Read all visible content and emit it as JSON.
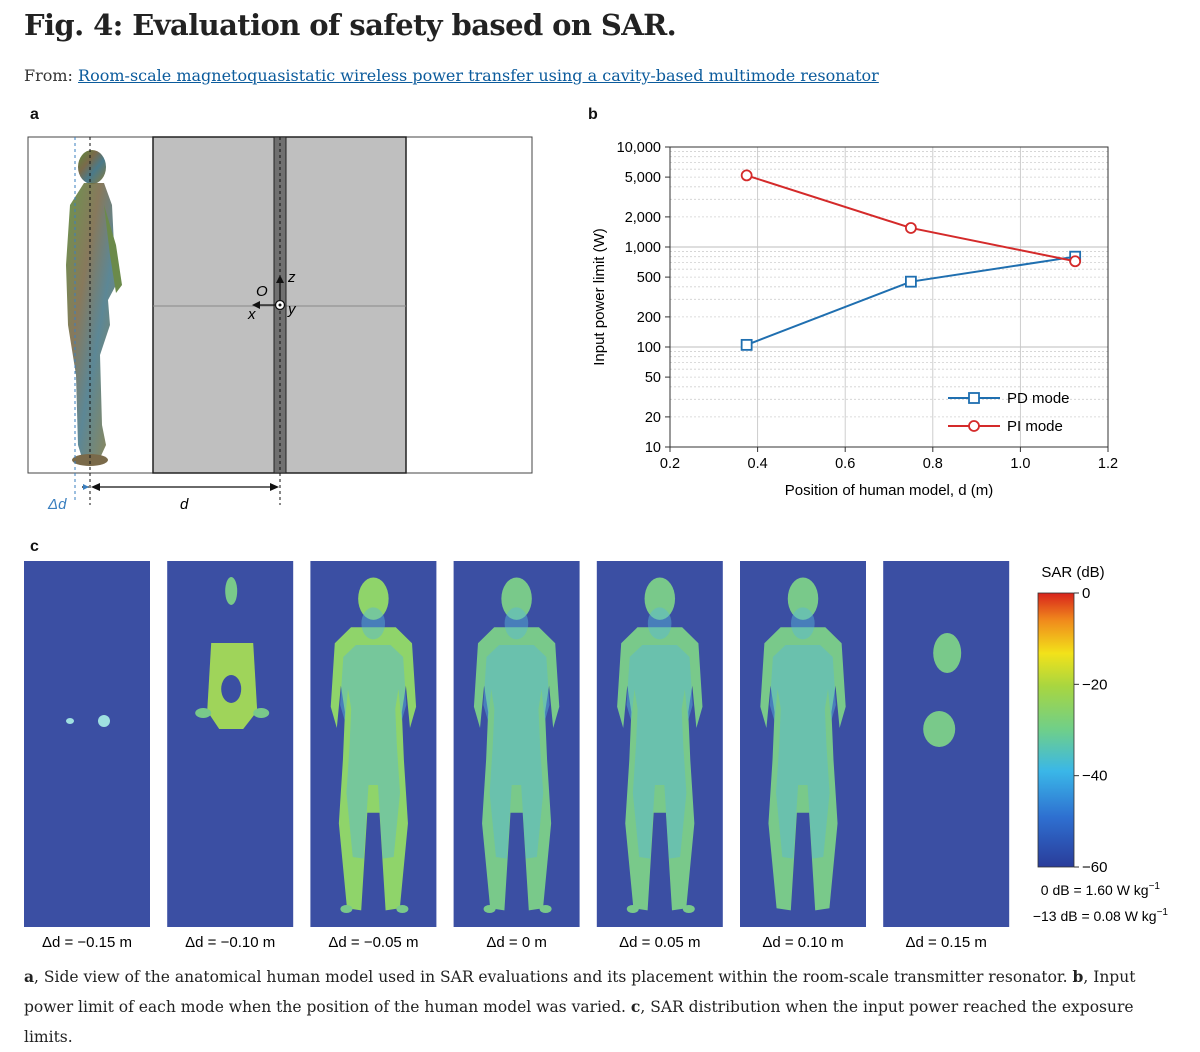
{
  "figure": {
    "title": "Fig. 4: Evaluation of safety based on SAR.",
    "from_label": "From:",
    "from_link": "Room-scale magnetoquasistatic wireless power transfer using a cavity-based multimode resonator"
  },
  "panel_a": {
    "label": "a",
    "axis_labels": {
      "origin": "O",
      "x": "x",
      "y": "y",
      "z": "z"
    },
    "dimensions": {
      "delta_d": "Δd",
      "d": "d"
    }
  },
  "panel_b": {
    "label": "b"
  },
  "panel_c": {
    "label": "c",
    "colorbar": {
      "title": "SAR (dB)",
      "ticks": [
        "0",
        "−20",
        "−40",
        "−60"
      ],
      "note1": "0 dB = 1.60 W kg",
      "note2": "−13 dB = 0.08 W kg",
      "note_exp": "−1"
    },
    "frames": [
      {
        "label": "Δd = −0.15 m"
      },
      {
        "label": "Δd = −0.10 m"
      },
      {
        "label": "Δd = −0.05 m"
      },
      {
        "label": "Δd = 0 m"
      },
      {
        "label": "Δd = 0.05 m"
      },
      {
        "label": "Δd = 0.10 m"
      },
      {
        "label": "Δd = 0.15 m"
      }
    ]
  },
  "caption": {
    "a_label": "a",
    "a_text": ", Side view of the anatomical human model used in SAR evaluations and its placement within the room-scale transmitter resonator. ",
    "b_label": "b",
    "b_text": ", Input power limit of each mode when the position of the human model was varied. ",
    "c_label": "c",
    "c_text": ", SAR distribution when the input power reached the exposure limits."
  },
  "chart_data": {
    "type": "line",
    "xlabel": "Position of human model, d (m)",
    "ylabel": "Input power limit (W)",
    "xlim": [
      0.2,
      1.2
    ],
    "ylim": [
      10,
      10000
    ],
    "yscale": "log",
    "x_ticks": [
      "0.2",
      "0.4",
      "0.6",
      "0.8",
      "1.0",
      "1.2"
    ],
    "y_ticks": [
      {
        "value": 10,
        "label": "10"
      },
      {
        "value": 20,
        "label": "20"
      },
      {
        "value": 50,
        "label": "50"
      },
      {
        "value": 100,
        "label": "100"
      },
      {
        "value": 200,
        "label": "200"
      },
      {
        "value": 500,
        "label": "500"
      },
      {
        "value": 1000,
        "label": "1,000"
      },
      {
        "value": 2000,
        "label": "2,000"
      },
      {
        "value": 5000,
        "label": "5,000"
      },
      {
        "value": 10000,
        "label": "10,000"
      }
    ],
    "grid": true,
    "legend_position": "bottom-right",
    "series": [
      {
        "name": "PD mode",
        "color": "#1f6fb0",
        "marker": "square",
        "x": [
          0.375,
          0.75,
          1.125
        ],
        "y": [
          105,
          450,
          800
        ]
      },
      {
        "name": "PI mode",
        "color": "#d42a2a",
        "marker": "circle",
        "x": [
          0.375,
          0.75,
          1.125
        ],
        "y": [
          5200,
          1550,
          720
        ]
      }
    ]
  }
}
